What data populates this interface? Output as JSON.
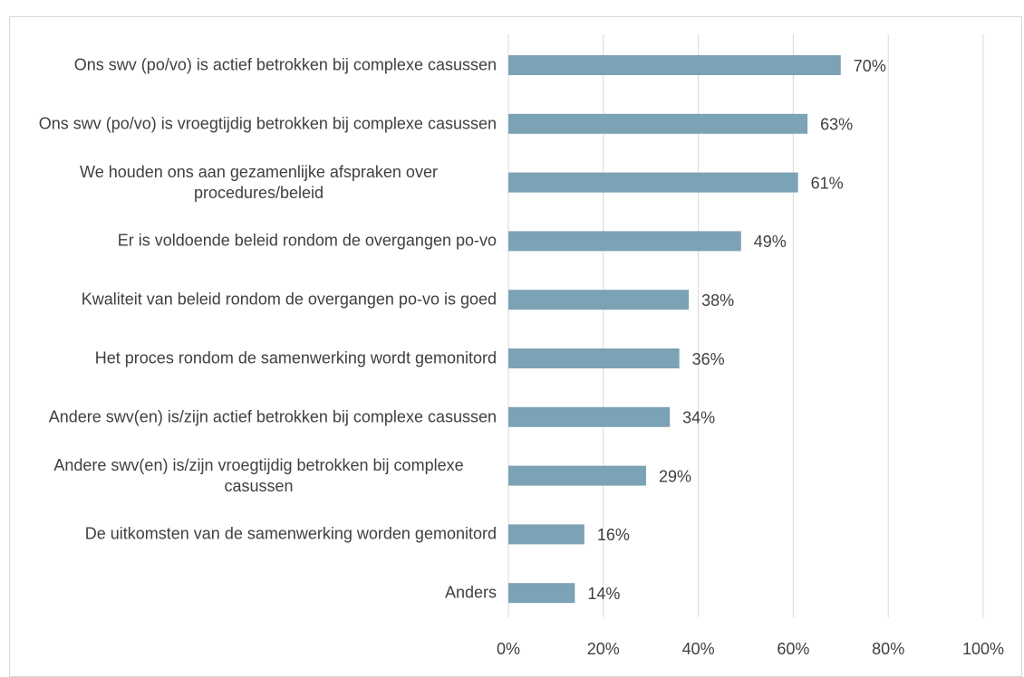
{
  "chart_data": {
    "type": "bar",
    "orientation": "horizontal",
    "categories": [
      "Ons swv (po/vo) is actief betrokken bij complexe casussen",
      "Ons swv (po/vo) is vroegtijdig betrokken bij complexe casussen",
      "We houden ons aan gezamenlijke afspraken over procedures/beleid",
      "Er is voldoende beleid rondom de overgangen po-vo",
      "Kwaliteit van beleid rondom de overgangen po-vo is goed",
      "Het proces rondom de samenwerking wordt gemonitord",
      "Andere swv(en) is/zijn actief betrokken bij complexe casussen",
      "Andere swv(en) is/zijn vroegtijdig betrokken bij complexe casussen",
      "De uitkomsten van de samenwerking worden gemonitord",
      "Anders"
    ],
    "values": [
      70,
      63,
      61,
      49,
      38,
      36,
      34,
      29,
      16,
      14
    ],
    "value_labels": [
      "70%",
      "63%",
      "61%",
      "49%",
      "38%",
      "36%",
      "34%",
      "29%",
      "16%",
      "14%"
    ],
    "color": "#7ba2b5",
    "xlim": [
      0,
      100
    ],
    "xticks": [
      {
        "value": 0,
        "label": "0%"
      },
      {
        "value": 20,
        "label": "20%"
      },
      {
        "value": 40,
        "label": "40%"
      },
      {
        "value": 60,
        "label": "60%"
      },
      {
        "value": 80,
        "label": "80%"
      },
      {
        "value": 100,
        "label": "100%"
      }
    ],
    "grid": true
  }
}
